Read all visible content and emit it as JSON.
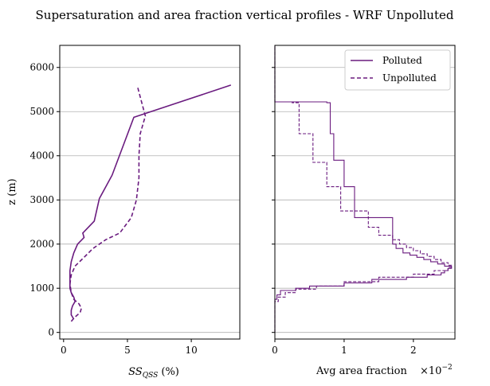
{
  "figure": {
    "title": "Supersaturation and area fraction vertical profiles - WRF Unpolluted",
    "color": "#6a1b7f",
    "grid_color": "#b0b0b0"
  },
  "chart_data": [
    {
      "type": "line",
      "ylabel": "z (m)",
      "xlabel_base": "SS",
      "xlabel_sub": "QSS",
      "xlabel_unit": " (%)",
      "xlim": [
        -0.3,
        13.8
      ],
      "ylim": [
        -150,
        6500
      ],
      "xticks": [
        0,
        5,
        10
      ],
      "yticks": [
        0,
        1000,
        2000,
        3000,
        4000,
        5000,
        6000
      ],
      "grid": "y",
      "series": [
        {
          "name": "Polluted",
          "style": "solid",
          "points": [
            [
              0.8,
              300
            ],
            [
              0.6,
              400
            ],
            [
              0.6,
              500
            ],
            [
              0.7,
              600
            ],
            [
              0.9,
              700
            ],
            [
              0.8,
              800
            ],
            [
              0.6,
              900
            ],
            [
              0.5,
              1000
            ],
            [
              0.5,
              1200
            ],
            [
              0.5,
              1400
            ],
            [
              0.6,
              1600
            ],
            [
              0.8,
              1800
            ],
            [
              1.1,
              2000
            ],
            [
              1.6,
              2150
            ],
            [
              1.5,
              2250
            ],
            [
              2.4,
              2520
            ],
            [
              2.8,
              3030
            ],
            [
              3.8,
              3560
            ],
            [
              5.5,
              4870
            ],
            [
              13.1,
              5600
            ]
          ]
        },
        {
          "name": "Unpolluted",
          "style": "dashed",
          "points": [
            [
              0.6,
              250
            ],
            [
              0.9,
              350
            ],
            [
              1.3,
              450
            ],
            [
              1.4,
              550
            ],
            [
              1.2,
              650
            ],
            [
              0.8,
              750
            ],
            [
              0.6,
              900
            ],
            [
              0.5,
              1100
            ],
            [
              0.6,
              1300
            ],
            [
              0.9,
              1500
            ],
            [
              1.6,
              1700
            ],
            [
              2.3,
              1900
            ],
            [
              3.3,
              2100
            ],
            [
              4.4,
              2250
            ],
            [
              5.3,
              2600
            ],
            [
              5.7,
              3000
            ],
            [
              5.9,
              3500
            ],
            [
              5.9,
              4000
            ],
            [
              6.0,
              4500
            ],
            [
              6.4,
              4900
            ],
            [
              5.8,
              5550
            ]
          ]
        }
      ]
    },
    {
      "type": "line",
      "xlabel": "Avg area fraction",
      "x_multiplier": "×10",
      "x_multiplier_exp": "−2",
      "xlim": [
        0,
        2.6
      ],
      "ylim": [
        -150,
        6500
      ],
      "xticks": [
        0,
        1,
        2
      ],
      "grid": "y",
      "legend": "top-right",
      "series": [
        {
          "name": "Polluted",
          "style": "solid",
          "profile": [
            [
              0,
              0
            ],
            [
              0,
              600
            ],
            [
              0.03,
              750
            ],
            [
              0.08,
              850
            ],
            [
              0.3,
              950
            ],
            [
              0.5,
              1000
            ],
            [
              1.0,
              1050
            ],
            [
              1.4,
              1120
            ],
            [
              1.9,
              1200
            ],
            [
              2.2,
              1250
            ],
            [
              2.4,
              1300
            ],
            [
              2.45,
              1350
            ],
            [
              2.5,
              1400
            ],
            [
              2.55,
              1450
            ],
            [
              2.45,
              1500
            ],
            [
              2.35,
              1550
            ],
            [
              2.25,
              1600
            ],
            [
              2.15,
              1650
            ],
            [
              2.05,
              1700
            ],
            [
              1.95,
              1750
            ],
            [
              1.85,
              1800
            ],
            [
              1.75,
              1900
            ],
            [
              1.7,
              2000
            ],
            [
              1.7,
              2400
            ],
            [
              1.15,
              2600
            ],
            [
              1.15,
              2950
            ],
            [
              1.0,
              3300
            ],
            [
              0.85,
              3900
            ],
            [
              0.8,
              4500
            ],
            [
              0.75,
              5200
            ],
            [
              0.75,
              5220
            ],
            [
              0,
              5220
            ],
            [
              0,
              6500
            ]
          ]
        },
        {
          "name": "Unpolluted",
          "style": "dashed",
          "profile": [
            [
              0,
              0
            ],
            [
              0,
              600
            ],
            [
              0.05,
              700
            ],
            [
              0.15,
              800
            ],
            [
              0.3,
              900
            ],
            [
              0.6,
              980
            ],
            [
              1.0,
              1050
            ],
            [
              1.5,
              1150
            ],
            [
              2.0,
              1250
            ],
            [
              2.3,
              1320
            ],
            [
              2.5,
              1400
            ],
            [
              2.55,
              1470
            ],
            [
              2.5,
              1520
            ],
            [
              2.4,
              1580
            ],
            [
              2.3,
              1650
            ],
            [
              2.2,
              1720
            ],
            [
              2.1,
              1780
            ],
            [
              2.0,
              1850
            ],
            [
              1.9,
              1920
            ],
            [
              1.8,
              2000
            ],
            [
              1.7,
              2100
            ],
            [
              1.5,
              2200
            ],
            [
              1.35,
              2380
            ],
            [
              0.95,
              2750
            ],
            [
              0.75,
              3300
            ],
            [
              0.55,
              3850
            ],
            [
              0.35,
              4500
            ],
            [
              0.25,
              5200
            ],
            [
              0,
              5220
            ],
            [
              0,
              6500
            ]
          ]
        }
      ]
    }
  ]
}
